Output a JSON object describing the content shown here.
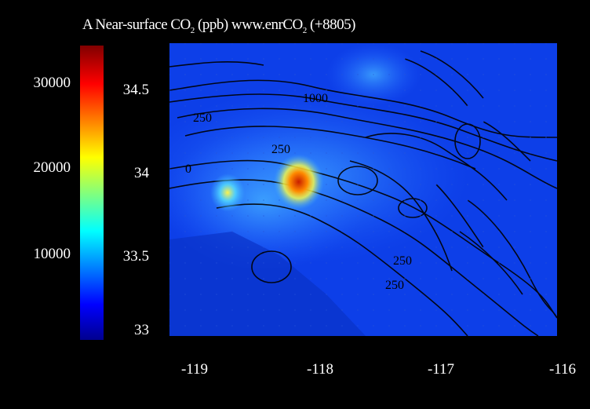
{
  "chart_data": {
    "type": "heatmap",
    "title": "A Near-surface CO",
    "title_subscript": "2",
    "title_rest": " (ppb) www.enrCO",
    "title_subscript2": "2",
    "title_tail": " (+8805)",
    "colorbar": {
      "ticks": [
        "30000",
        "20000",
        "10000"
      ],
      "colormap": "jet",
      "range_hint": [
        0,
        35000
      ]
    },
    "y_axis": {
      "ticks": [
        "34.5",
        "34",
        "33.5",
        "33"
      ],
      "range": [
        32.95,
        34.85
      ]
    },
    "x_axis": {
      "ticks": [
        "-119",
        "-118",
        "-117",
        "-116"
      ],
      "range": [
        -119.0,
        -116.0
      ]
    },
    "contour_labels": [
      "1000",
      "250",
      "250",
      "0",
      "250",
      "250"
    ],
    "hotspots": [
      {
        "lon": -118.0,
        "lat": 33.95,
        "intensity": 1.0
      },
      {
        "lon": -118.55,
        "lat": 33.88,
        "intensity": 0.55
      }
    ],
    "grid": true
  }
}
